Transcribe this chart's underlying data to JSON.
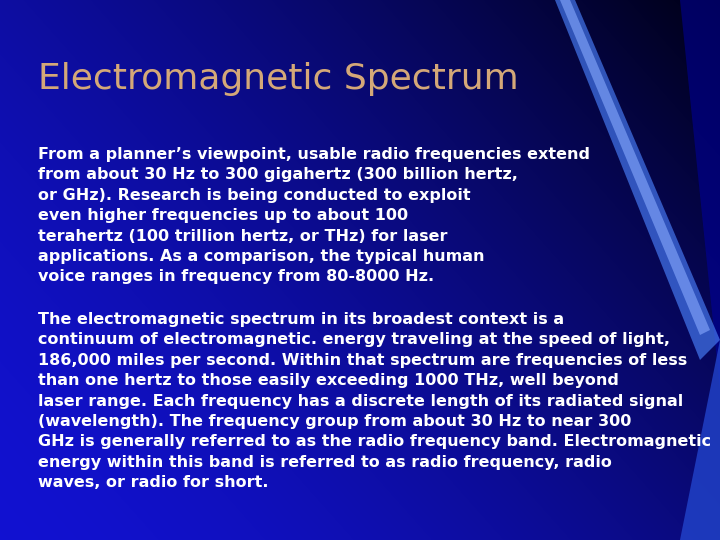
{
  "title": "Electromagnetic Spectrum",
  "title_color": "#D4A878",
  "title_fontsize": 26,
  "title_bold": false,
  "body_color": "#FFFFFF",
  "body_fontsize": 11.5,
  "bg_blue": [
    0.07,
    0.07,
    0.82
  ],
  "bg_dark": [
    0.0,
    0.0,
    0.08
  ],
  "paragraph1": "From a planner’s viewpoint, usable radio frequencies extend\nfrom about 30 Hz to 300 gigahertz (300 billion hertz,\nor GHz). Research is being conducted to exploit\neven higher frequencies up to about 100\nterahertz (100 trillion hertz, or THz) for laser\napplications. As a comparison, the typical human\nvoice ranges in frequency from 80-8000 Hz.",
  "paragraph2": "The electromagnetic spectrum in its broadest context is a\ncontinuum of electromagnetic. energy traveling at the speed of light,\n186,000 miles per second. Within that spectrum are frequencies of less\nthan one hertz to those easily exceeding 1000 THz, well beyond\nlaser range. Each frequency has a discrete length of its radiated signal\n(wavelength). The frequency group from about 30 Hz to near 300\nGHz is generally referred to as the radio frequency band. Electromagnetic\nenergy within this band is referred to as radio frequency, radio\nwaves, or radio for short.",
  "fig_width": 7.2,
  "fig_height": 5.4,
  "dpi": 100
}
